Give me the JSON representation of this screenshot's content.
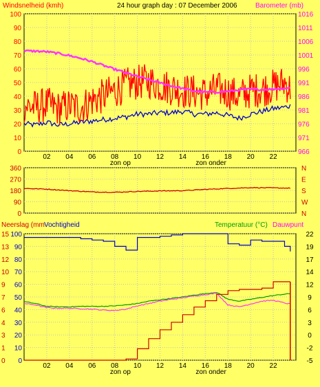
{
  "chart_data": [
    {
      "type": "line",
      "title": "24 hour graph day : 07 December 2006",
      "left_label": "Windsnelheid (kmh)",
      "right_label": "Barometer (mb)",
      "y_ticks": [
        "0",
        "10",
        "20",
        "30",
        "40",
        "50",
        "60",
        "70",
        "80",
        "90",
        "100"
      ],
      "ylim": [
        0,
        100
      ],
      "y2_ticks": [
        "966",
        "971",
        "976",
        "981",
        "986",
        "991",
        "996",
        "1001",
        "1006",
        "1011",
        "1016"
      ],
      "y2lim": [
        966,
        1016
      ],
      "x_ticks": [
        "02",
        "04",
        "06",
        "08",
        "10",
        "12",
        "14",
        "16",
        "18",
        "20",
        "22"
      ],
      "xlim": [
        0,
        24
      ],
      "event_labels": [
        {
          "text": "zon op",
          "x": 8.5
        },
        {
          "text": "zon onder",
          "x": 16.5
        }
      ],
      "grid": true,
      "colors": {
        "gust": "#ff0000",
        "average": "#0000cc",
        "barometer": "#ff33ff",
        "grid": "#c0c0c0"
      },
      "series": [
        {
          "key": "gust",
          "axis": "left",
          "x": [
            0,
            1,
            2,
            3,
            4,
            5,
            6,
            7,
            8,
            9,
            10,
            11,
            12,
            13,
            14,
            15,
            16,
            17,
            18,
            19,
            20,
            21,
            22,
            23,
            23.5
          ],
          "y": [
            33,
            32,
            34,
            31,
            33,
            32,
            37,
            40,
            44,
            48,
            50,
            51,
            48,
            46,
            44,
            43,
            42,
            45,
            43,
            40,
            44,
            45,
            47,
            50,
            45
          ]
        },
        {
          "key": "average",
          "axis": "left",
          "x": [
            0,
            1,
            2,
            3,
            4,
            5,
            6,
            7,
            8,
            9,
            10,
            11,
            12,
            13,
            14,
            15,
            16,
            17,
            18,
            19,
            20,
            21,
            22,
            23,
            23.5
          ],
          "y": [
            20,
            19,
            21,
            19,
            20,
            21,
            22,
            23,
            24,
            25,
            27,
            27,
            28,
            28,
            29,
            27,
            27,
            28,
            26,
            24,
            27,
            29,
            31,
            32,
            33
          ]
        },
        {
          "key": "barometer",
          "axis": "right",
          "x": [
            0,
            1,
            2,
            3,
            4,
            5,
            6,
            7,
            8,
            9,
            10,
            11,
            12,
            13,
            14,
            15,
            16,
            17,
            18,
            19,
            20,
            21,
            22,
            23,
            23.5
          ],
          "y": [
            1002.5,
            1002.4,
            1002.2,
            1001.6,
            1000.8,
            999.8,
            998.6,
            997.2,
            995.8,
            994.5,
            993.2,
            992.0,
            990.9,
            989.8,
            988.8,
            987.9,
            987.5,
            987.5,
            987.8,
            988.3,
            988.6,
            988.4,
            988.6,
            988.9,
            989.0
          ]
        }
      ]
    },
    {
      "type": "line",
      "left_ticks": [
        "0",
        "90",
        "180",
        "270",
        "360"
      ],
      "ylim": [
        0,
        360
      ],
      "right_ticks": [
        "N",
        "W",
        "S",
        "E",
        "N"
      ],
      "x_ticks": [],
      "grid": true,
      "series": [
        {
          "key": "wind_direction",
          "color": "#cc0000",
          "x": [
            0,
            2,
            4,
            6,
            8,
            10,
            12,
            14,
            16,
            18,
            20,
            22,
            23.5
          ],
          "y": [
            196,
            190,
            178,
            168,
            165,
            172,
            176,
            178,
            188,
            196,
            202,
            200,
            198
          ]
        }
      ]
    },
    {
      "type": "line",
      "left_label_1": "Neerslag (mm",
      "left_label_2": "Vochtigheid",
      "right_label_1": "Temperatuur (°C)",
      "right_label_2": "Dauwpunt",
      "humidity_ticks": [
        "0",
        "10",
        "20",
        "30",
        "40",
        "50",
        "60",
        "70",
        "80",
        "90",
        "100"
      ],
      "rain_ticks": [
        "0",
        "1",
        "3",
        "4",
        "6",
        "7",
        "9",
        "10",
        "12",
        "13",
        "15"
      ],
      "ylim": [
        0,
        100
      ],
      "y2_ticks": [
        "-5",
        "-2",
        "0",
        "3",
        "6",
        "9",
        "12",
        "14",
        "17",
        "19",
        "22"
      ],
      "y2lim": [
        -5,
        22
      ],
      "x_ticks": [
        "02",
        "04",
        "06",
        "08",
        "10",
        "12",
        "14",
        "16",
        "18",
        "20",
        "22"
      ],
      "xlim": [
        0,
        24
      ],
      "event_labels": [
        {
          "text": "zon op",
          "x": 8.5
        },
        {
          "text": "zon onder",
          "x": 16.5
        }
      ],
      "grid": true,
      "colors": {
        "humidity": "#0000cc",
        "temperature": "#009900",
        "dewpoint": "#ff33ff",
        "rain": "#cc0000"
      },
      "series": [
        {
          "key": "humidity",
          "axis": "left",
          "x": [
            0,
            1,
            2,
            3,
            4,
            5,
            6,
            7,
            8,
            9,
            10,
            11,
            12,
            13,
            14,
            15,
            16,
            17,
            18,
            19,
            20,
            21,
            22,
            23,
            23.5
          ],
          "y": [
            97,
            97,
            97,
            97,
            97,
            96,
            95,
            94,
            90,
            87,
            97,
            97,
            98,
            99,
            100,
            100,
            100,
            100,
            92,
            91,
            95,
            94,
            94,
            90,
            86
          ]
        },
        {
          "key": "temperature",
          "axis": "right",
          "x": [
            0,
            1,
            2,
            3,
            4,
            5,
            6,
            7,
            8,
            9,
            10,
            11,
            12,
            13,
            14,
            15,
            16,
            17,
            18,
            19,
            20,
            21,
            22,
            23,
            23.5
          ],
          "y": [
            7.5,
            7.1,
            6.5,
            6.4,
            6.4,
            6.5,
            6.5,
            6.5,
            6.6,
            6.8,
            7.1,
            7.6,
            7.9,
            8.2,
            8.5,
            8.9,
            9.2,
            9.5,
            8.0,
            7.6,
            8.0,
            8.4,
            8.8,
            9.1,
            9.2
          ]
        },
        {
          "key": "dewpoint",
          "axis": "right",
          "x": [
            0,
            1,
            2,
            3,
            4,
            5,
            6,
            7,
            8,
            9,
            10,
            11,
            12,
            13,
            14,
            15,
            16,
            17,
            18,
            19,
            20,
            21,
            22,
            23,
            23.5
          ],
          "y": [
            7.1,
            6.8,
            6.2,
            6.1,
            6.1,
            6.0,
            5.9,
            5.7,
            5.6,
            5.9,
            6.6,
            7.1,
            7.6,
            8.0,
            8.3,
            8.7,
            9.0,
            9.3,
            6.8,
            6.4,
            7.0,
            7.6,
            7.8,
            7.2,
            7.0
          ]
        },
        {
          "key": "rain",
          "axis": "left",
          "x": [
            0,
            8.8,
            9,
            10,
            11,
            12,
            13,
            14,
            15,
            16,
            17,
            18,
            19,
            20,
            21,
            22,
            23,
            23.5
          ],
          "y": [
            0,
            0,
            1,
            9,
            17,
            24,
            30,
            36,
            42,
            47,
            52,
            55,
            56,
            56,
            57,
            62,
            62,
            62
          ]
        }
      ]
    }
  ]
}
